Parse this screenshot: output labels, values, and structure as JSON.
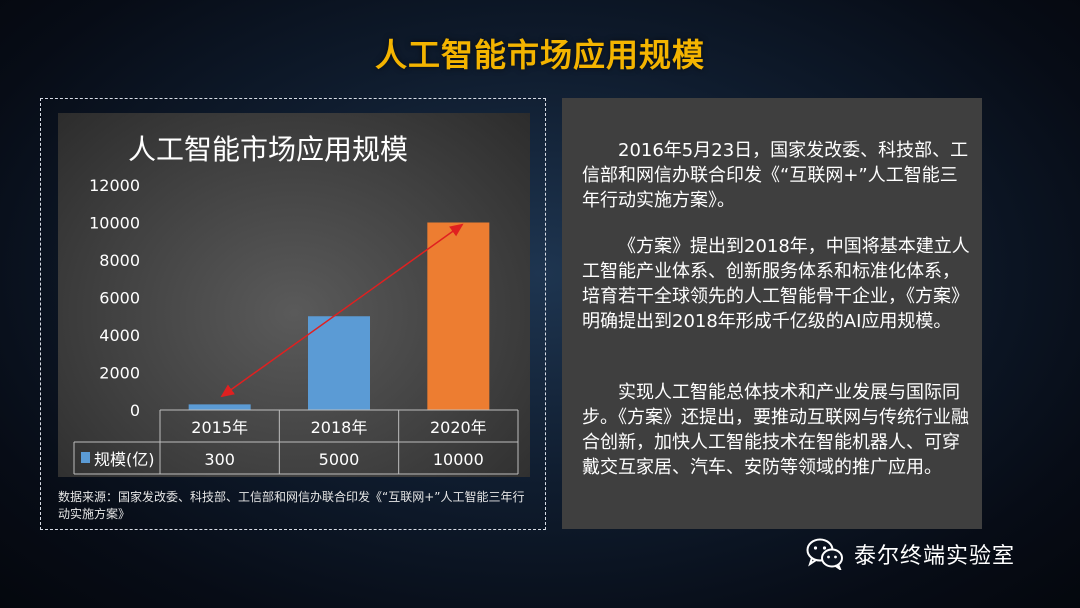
{
  "page": {
    "title": "人工智能市场应用规模"
  },
  "chart": {
    "title": "人工智能市场应用规模",
    "legend_label": "规模(亿)",
    "source": "数据来源：国家发改委、科技部、工信部和网信办联合印发《“互联网+”人工智能三年行动实施方案》"
  },
  "chart_data": {
    "type": "bar",
    "title": "人工智能市场应用规模",
    "categories": [
      "2015年",
      "2018年",
      "2020年"
    ],
    "series": [
      {
        "name": "规模(亿)",
        "values": [
          300,
          5000,
          10000
        ]
      }
    ],
    "bar_colors": [
      "#5b9bd5",
      "#5b9bd5",
      "#ed7d31"
    ],
    "ylim": [
      0,
      12000
    ],
    "yticks": [
      "0",
      "2000",
      "4000",
      "6000",
      "8000",
      "10000",
      "12000"
    ],
    "table_values": [
      "300",
      "5000",
      "10000"
    ],
    "trend_arrow_color": "#e02020",
    "grid": false,
    "legend": "data-table"
  },
  "text": {
    "p1": "2016年5月23日，国家发改委、科技部、工信部和网信办联合印发《“互联网+”人工智能三年行动实施方案》。",
    "p2": "《方案》提出到2018年，中国将基本建立人工智能产业体系、创新服务体系和标准化体系，培育若干全球领先的人工智能骨干企业，《方案》明确提出到2018年形成千亿级的AI应用规模。",
    "p3": "实现人工智能总体技术和产业发展与国际同步。《方案》还提出，要推动互联网与传统行业融合创新，加快人工智能技术在智能机器人、可穿戴交互家居、汽车、安防等领域的推广应用。"
  },
  "footer": {
    "icon": "wechat-icon",
    "label": "泰尔终端实验室"
  }
}
